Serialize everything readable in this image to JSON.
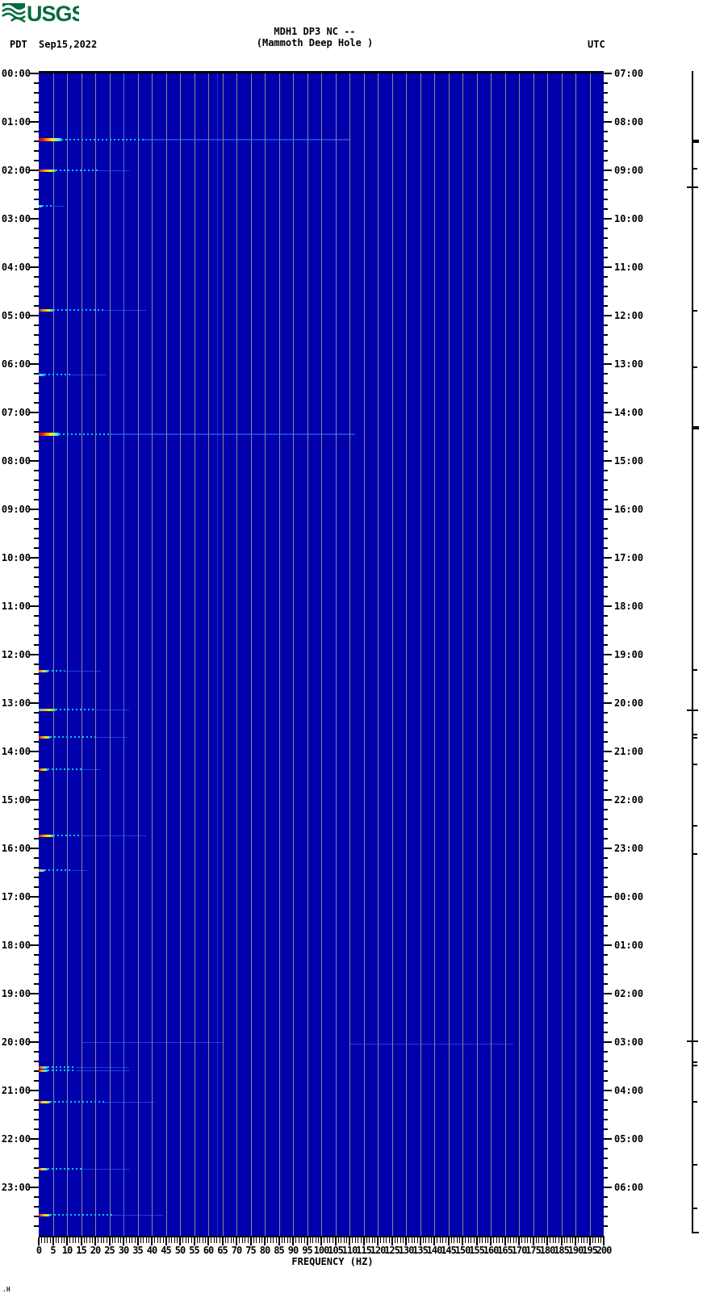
{
  "header": {
    "logo_text": "USGS",
    "timezone_left": "PDT",
    "date": "Sep15,2022",
    "title_line1": "MDH1 DP3 NC --",
    "title_line2": "(Mammoth Deep Hole )",
    "timezone_right": "UTC"
  },
  "footer": {
    "corner_mark": ".H"
  },
  "chart_data": {
    "type": "heatmap",
    "subtype": "seismic-spectrogram",
    "title": "MDH1 DP3 NC --",
    "subtitle": "(Mammoth Deep Hole )",
    "xlabel": "FREQUENCY (HZ)",
    "xlim": [
      0,
      200
    ],
    "x_major_step_hz": 5,
    "x_minor_step_hz": 1,
    "x_tick_labels": [
      "0",
      "5",
      "10",
      "15",
      "20",
      "25",
      "30",
      "35",
      "40",
      "45",
      "50",
      "55",
      "60",
      "65",
      "70",
      "75",
      "80",
      "85",
      "90",
      "95",
      "100",
      "105",
      "110",
      "115",
      "120",
      "125",
      "130",
      "135",
      "140",
      "145",
      "150",
      "155",
      "160",
      "165",
      "170",
      "175",
      "180",
      "185",
      "190",
      "195",
      "200"
    ],
    "grid_on": true,
    "time_axis": {
      "left_timezone": "PDT",
      "right_timezone": "UTC",
      "date": "Sep15,2022",
      "minor_tick_minutes": 12,
      "left_labels": [
        "00:00",
        "01:00",
        "02:00",
        "03:00",
        "04:00",
        "05:00",
        "06:00",
        "07:00",
        "08:00",
        "09:00",
        "10:00",
        "11:00",
        "12:00",
        "13:00",
        "14:00",
        "15:00",
        "16:00",
        "17:00",
        "18:00",
        "19:00",
        "20:00",
        "21:00",
        "22:00",
        "23:00"
      ],
      "right_labels": [
        "07:00",
        "08:00",
        "09:00",
        "10:00",
        "11:00",
        "12:00",
        "13:00",
        "14:00",
        "15:00",
        "16:00",
        "17:00",
        "18:00",
        "19:00",
        "20:00",
        "21:00",
        "22:00",
        "23:00",
        "00:00",
        "01:00",
        "02:00",
        "03:00",
        "04:00",
        "05:00",
        "06:00"
      ]
    },
    "style": {
      "background": "#0000AC",
      "gridline": "#8a8a8a",
      "tail_color": "#00c8f0",
      "faint_color": "#4c8cff",
      "persistent_line_color": "#2b5cff",
      "logo_green": "#046b3c"
    },
    "persistent_lines_hz": [
      30,
      63
    ],
    "events": [
      {
        "time_pdt": "01:22",
        "size": "large",
        "head_hz": 8,
        "tail_hz": 37,
        "faint_hz": 110,
        "peak_colors": [
          "#bb0000",
          "#ff2200",
          "#ff9900",
          "#ffee00",
          "#88e8bb",
          "#22ccee"
        ]
      },
      {
        "time_pdt": "02:00",
        "size": "small",
        "head_hz": 6,
        "tail_hz": 21,
        "faint_hz": 32,
        "peak_colors": [
          "#cc1100",
          "#ff9900",
          "#ffee00",
          "#33ccee"
        ]
      },
      {
        "time_pdt": "02:44",
        "size": "small",
        "head_hz": 1,
        "tail_hz": 5,
        "faint_hz": 9,
        "peak_colors": [
          "#55ccee"
        ]
      },
      {
        "time_pdt": "04:53",
        "size": "small",
        "head_hz": 5,
        "tail_hz": 23,
        "faint_hz": 38,
        "peak_colors": [
          "#cc1100",
          "#ff9900",
          "#ffee00",
          "#33ccee"
        ]
      },
      {
        "time_pdt": "06:13",
        "size": "small",
        "head_hz": 2,
        "tail_hz": 11,
        "faint_hz": 24,
        "peak_colors": [
          "#66ddee",
          "#22bbee"
        ]
      },
      {
        "time_pdt": "07:27",
        "size": "large",
        "head_hz": 7,
        "tail_hz": 26,
        "faint_hz": 112,
        "peak_colors": [
          "#bb0000",
          "#ff2200",
          "#ff9900",
          "#ffee00",
          "#88e8bb",
          "#22ccee"
        ]
      },
      {
        "time_pdt": "12:20",
        "size": "small",
        "head_hz": 3,
        "tail_hz": 9,
        "faint_hz": 22,
        "peak_colors": [
          "#ee6600",
          "#ffcc33",
          "#44ddee"
        ]
      },
      {
        "time_pdt": "13:08",
        "size": "small",
        "head_hz": 6,
        "tail_hz": 20,
        "faint_hz": 32,
        "peak_colors": [
          "#44ddaa",
          "#ffaa33",
          "#ffee00",
          "#00ccdd"
        ]
      },
      {
        "time_pdt": "13:42",
        "size": "small",
        "head_hz": 4,
        "tail_hz": 20,
        "faint_hz": 31,
        "peak_colors": [
          "#cc1100",
          "#ff9900",
          "#ffee00",
          "#33ccee"
        ]
      },
      {
        "time_pdt": "14:22",
        "size": "small",
        "head_hz": 3,
        "tail_hz": 15,
        "faint_hz": 22,
        "peak_colors": [
          "#cc1100",
          "#ff9900",
          "#ffee00",
          "#33ccee"
        ]
      },
      {
        "time_pdt": "15:44",
        "size": "small",
        "head_hz": 5,
        "tail_hz": 15,
        "faint_hz": 38,
        "peak_colors": [
          "#cc1100",
          "#ff9900",
          "#ffee00",
          "#33ccee"
        ]
      },
      {
        "time_pdt": "16:27",
        "size": "small",
        "head_hz": 2,
        "tail_hz": 12,
        "faint_hz": 17,
        "peak_colors": [
          "#ffcc33",
          "#55ddcc"
        ]
      },
      {
        "time_pdt": "20:00",
        "size": "smear",
        "start_hz": 15,
        "head_hz": 0,
        "tail_hz": 0,
        "faint_hz": 65,
        "peak_colors": []
      },
      {
        "time_pdt": "20:02",
        "size": "smear",
        "start_hz": 110,
        "head_hz": 0,
        "tail_hz": 0,
        "faint_hz": 168,
        "peak_colors": []
      },
      {
        "time_pdt": "20:31",
        "size": "small",
        "head_hz": 3,
        "tail_hz": 13,
        "faint_hz": 32,
        "peak_colors": [
          "#cc1100",
          "#ff9900",
          "#66ddcc",
          "#33ccee"
        ]
      },
      {
        "time_pdt": "20:35",
        "size": "small",
        "head_hz": 3,
        "tail_hz": 13,
        "faint_hz": 32,
        "peak_colors": [
          "#cc1100",
          "#ff9900",
          "#66ddcc",
          "#33ccee"
        ]
      },
      {
        "time_pdt": "21:14",
        "size": "small",
        "head_hz": 4,
        "tail_hz": 23,
        "faint_hz": 41,
        "peak_colors": [
          "#cc1100",
          "#ffcc33",
          "#ffee00",
          "#33ccee"
        ]
      },
      {
        "time_pdt": "22:37",
        "size": "small",
        "head_hz": 3,
        "tail_hz": 15,
        "faint_hz": 32,
        "peak_colors": [
          "#ee6600",
          "#ffdd44",
          "#33ccee"
        ]
      },
      {
        "time_pdt": "23:34",
        "size": "small",
        "head_hz": 4,
        "tail_hz": 26,
        "faint_hz": 44,
        "peak_colors": [
          "#cc1100",
          "#ff9900",
          "#ffee00",
          "#33ccee"
        ]
      }
    ],
    "detection_markers": [
      {
        "time_pdt": "01:24",
        "style": "bold"
      },
      {
        "time_pdt": "01:58",
        "style": "small"
      },
      {
        "time_pdt": "02:21",
        "style": "long"
      },
      {
        "time_pdt": "04:54",
        "style": "small"
      },
      {
        "time_pdt": "06:04",
        "style": "small"
      },
      {
        "time_pdt": "07:19",
        "style": "bold"
      },
      {
        "time_pdt": "12:19",
        "style": "small"
      },
      {
        "time_pdt": "13:09",
        "style": "long"
      },
      {
        "time_pdt": "13:41",
        "style": "double"
      },
      {
        "time_pdt": "14:16",
        "style": "small"
      },
      {
        "time_pdt": "15:32",
        "style": "small"
      },
      {
        "time_pdt": "16:07",
        "style": "small"
      },
      {
        "time_pdt": "19:59",
        "style": "long"
      },
      {
        "time_pdt": "20:27",
        "style": "double"
      },
      {
        "time_pdt": "21:14",
        "style": "small"
      },
      {
        "time_pdt": "22:32",
        "style": "small"
      },
      {
        "time_pdt": "23:26",
        "style": "small"
      }
    ]
  }
}
